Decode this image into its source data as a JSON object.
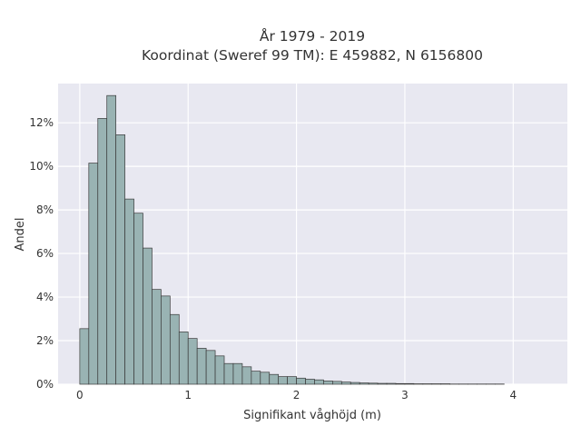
{
  "chart_data": {
    "type": "bar",
    "title_lines": [
      "År 1979 - 2019",
      "Koordinat (Sweref 99 TM): E 459882, N 6156800"
    ],
    "xlabel": "Signifikant våghöjd (m)",
    "ylabel": "Andel",
    "xlim": [
      -0.2,
      4.5
    ],
    "ylim": [
      0,
      13.8
    ],
    "x_ticks": [
      0,
      1,
      2,
      3,
      4
    ],
    "y_ticks": [
      0,
      2,
      4,
      6,
      8,
      10,
      12
    ],
    "y_tick_labels": [
      "0%",
      "2%",
      "4%",
      "6%",
      "8%",
      "10%",
      "12%"
    ],
    "bin_width": 0.08333,
    "bin_start": 0,
    "values": [
      2.55,
      10.15,
      12.2,
      13.25,
      11.45,
      8.5,
      7.85,
      6.25,
      4.35,
      4.05,
      3.2,
      2.4,
      2.1,
      1.65,
      1.55,
      1.3,
      0.95,
      0.95,
      0.8,
      0.6,
      0.55,
      0.45,
      0.35,
      0.35,
      0.28,
      0.23,
      0.2,
      0.15,
      0.13,
      0.1,
      0.08,
      0.06,
      0.05,
      0.04,
      0.04,
      0.03,
      0.03,
      0.02,
      0.02,
      0.02,
      0.02,
      0.01,
      0.01,
      0.01,
      0.01,
      0.01,
      0.01
    ],
    "grid": true,
    "colors": {
      "bar_fill": "#99b3b3",
      "bar_edge": "#3a3a3a",
      "plot_bg": "#e8e8f1",
      "grid": "#ffffff"
    }
  }
}
